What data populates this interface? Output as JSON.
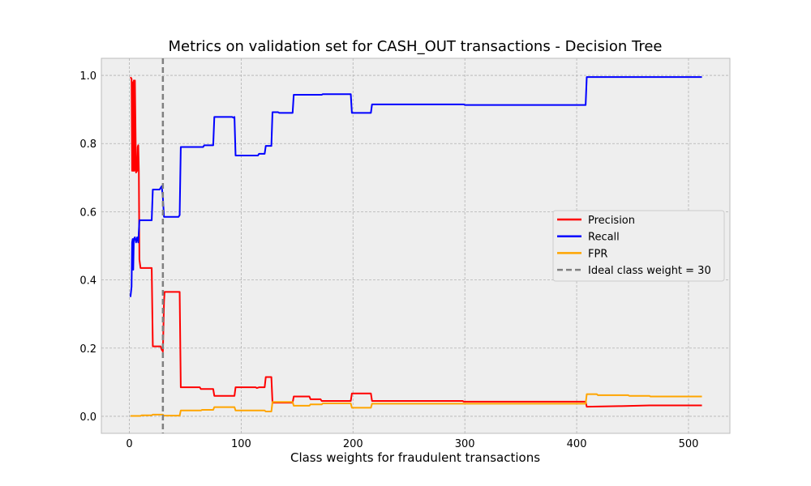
{
  "chart_data": {
    "type": "line",
    "title": "Metrics on validation set for CASH_OUT transactions - Decision Tree",
    "xlabel": "Class weights for fraudulent transactions",
    "ylabel": "",
    "xlim": [
      -25,
      537
    ],
    "ylim": [
      -0.05,
      1.05
    ],
    "xticks": [
      0,
      100,
      200,
      300,
      400,
      500
    ],
    "yticks": [
      0.0,
      0.2,
      0.4,
      0.6,
      0.8,
      1.0
    ],
    "xtick_labels": [
      "0",
      "100",
      "200",
      "300",
      "400",
      "500"
    ],
    "ytick_labels": [
      "0.0",
      "0.2",
      "0.4",
      "0.6",
      "0.8",
      "1.0"
    ],
    "grid": true,
    "legend_position": "center-right",
    "series": [
      {
        "name": "Precision",
        "color": "#ff0000",
        "points": [
          [
            1,
            0.995
          ],
          [
            2,
            0.99
          ],
          [
            2.5,
            0.72
          ],
          [
            3,
            0.98
          ],
          [
            3.5,
            0.72
          ],
          [
            4,
            0.985
          ],
          [
            4.5,
            0.72
          ],
          [
            5,
            0.985
          ],
          [
            6,
            0.715
          ],
          [
            7,
            0.72
          ],
          [
            7.5,
            0.79
          ],
          [
            8,
            0.795
          ],
          [
            8.5,
            0.72
          ],
          [
            9,
            0.46
          ],
          [
            10,
            0.435
          ],
          [
            20,
            0.435
          ],
          [
            21,
            0.205
          ],
          [
            28,
            0.205
          ],
          [
            29,
            0.195
          ],
          [
            30,
            0.19
          ],
          [
            31,
            0.335
          ],
          [
            31.5,
            0.365
          ],
          [
            45,
            0.365
          ],
          [
            46,
            0.085
          ],
          [
            63,
            0.085
          ],
          [
            64,
            0.08
          ],
          [
            75,
            0.08
          ],
          [
            76,
            0.06
          ],
          [
            94,
            0.06
          ],
          [
            95,
            0.085
          ],
          [
            113,
            0.085
          ],
          [
            114,
            0.083
          ],
          [
            116,
            0.085
          ],
          [
            121,
            0.085
          ],
          [
            122,
            0.115
          ],
          [
            127,
            0.115
          ],
          [
            128,
            0.04
          ],
          [
            146,
            0.04
          ],
          [
            147,
            0.058
          ],
          [
            161,
            0.058
          ],
          [
            162,
            0.05
          ],
          [
            171,
            0.05
          ],
          [
            172,
            0.045
          ],
          [
            198,
            0.045
          ],
          [
            199,
            0.067
          ],
          [
            216,
            0.067
          ],
          [
            217,
            0.045
          ],
          [
            298,
            0.045
          ],
          [
            299,
            0.043
          ],
          [
            408,
            0.043
          ],
          [
            409,
            0.028
          ],
          [
            440,
            0.03
          ],
          [
            465,
            0.032
          ],
          [
            512,
            0.032
          ]
        ]
      },
      {
        "name": "Recall",
        "color": "#0000ff",
        "points": [
          [
            1,
            0.35
          ],
          [
            2,
            0.38
          ],
          [
            2.5,
            0.51
          ],
          [
            3,
            0.52
          ],
          [
            3.5,
            0.43
          ],
          [
            4,
            0.52
          ],
          [
            5,
            0.525
          ],
          [
            6,
            0.51
          ],
          [
            7,
            0.525
          ],
          [
            8,
            0.51
          ],
          [
            9,
            0.575
          ],
          [
            10,
            0.575
          ],
          [
            20,
            0.575
          ],
          [
            21,
            0.665
          ],
          [
            27,
            0.665
          ],
          [
            28,
            0.67
          ],
          [
            29,
            0.675
          ],
          [
            30,
            0.64
          ],
          [
            31,
            0.585
          ],
          [
            44,
            0.585
          ],
          [
            45,
            0.59
          ],
          [
            46,
            0.79
          ],
          [
            66,
            0.79
          ],
          [
            67,
            0.795
          ],
          [
            75,
            0.795
          ],
          [
            76,
            0.878
          ],
          [
            92,
            0.878
          ],
          [
            93,
            0.876
          ],
          [
            94,
            0.878
          ],
          [
            95,
            0.765
          ],
          [
            115,
            0.765
          ],
          [
            116,
            0.77
          ],
          [
            121,
            0.77
          ],
          [
            122,
            0.793
          ],
          [
            127,
            0.793
          ],
          [
            128,
            0.892
          ],
          [
            133,
            0.892
          ],
          [
            134,
            0.89
          ],
          [
            146,
            0.89
          ],
          [
            147,
            0.943
          ],
          [
            172,
            0.943
          ],
          [
            173,
            0.945
          ],
          [
            198,
            0.945
          ],
          [
            199,
            0.89
          ],
          [
            216,
            0.89
          ],
          [
            217,
            0.915
          ],
          [
            299,
            0.915
          ],
          [
            300,
            0.913
          ],
          [
            408,
            0.913
          ],
          [
            409,
            0.995
          ],
          [
            512,
            0.995
          ]
        ]
      },
      {
        "name": "FPR",
        "color": "#ffa500",
        "points": [
          [
            1,
            0.001
          ],
          [
            10,
            0.001
          ],
          [
            11,
            0.003
          ],
          [
            20,
            0.003
          ],
          [
            21,
            0.005
          ],
          [
            30,
            0.005
          ],
          [
            31,
            0.002
          ],
          [
            45,
            0.002
          ],
          [
            46,
            0.017
          ],
          [
            64,
            0.017
          ],
          [
            65,
            0.019
          ],
          [
            75,
            0.019
          ],
          [
            76,
            0.027
          ],
          [
            94,
            0.027
          ],
          [
            95,
            0.017
          ],
          [
            121,
            0.017
          ],
          [
            122,
            0.014
          ],
          [
            127,
            0.014
          ],
          [
            128,
            0.042
          ],
          [
            146,
            0.042
          ],
          [
            147,
            0.031
          ],
          [
            161,
            0.031
          ],
          [
            162,
            0.035
          ],
          [
            172,
            0.035
          ],
          [
            173,
            0.038
          ],
          [
            198,
            0.038
          ],
          [
            199,
            0.025
          ],
          [
            216,
            0.025
          ],
          [
            217,
            0.037
          ],
          [
            408,
            0.037
          ],
          [
            409,
            0.065
          ],
          [
            418,
            0.065
          ],
          [
            419,
            0.062
          ],
          [
            446,
            0.062
          ],
          [
            447,
            0.06
          ],
          [
            465,
            0.06
          ],
          [
            466,
            0.058
          ],
          [
            512,
            0.058
          ]
        ]
      }
    ],
    "reference_line": {
      "name": "Ideal class weight = 30",
      "x": 30,
      "color": "#808080",
      "style": "dashed"
    }
  }
}
